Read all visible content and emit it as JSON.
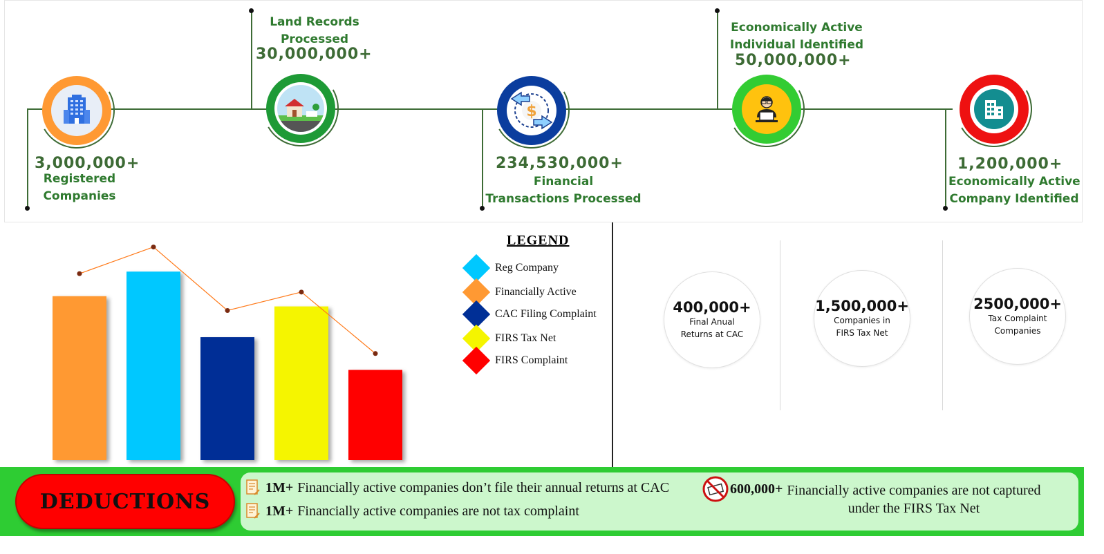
{
  "timeline": {
    "milestones": [
      {
        "value": "3,000,000+",
        "label_line1": "Registered",
        "label_line2": "Companies",
        "icon": "office-building-icon",
        "ring_color": "#ff9933",
        "inner_color": "#e8eef7"
      },
      {
        "value": "30,000,000+",
        "label_line1": "Land Records",
        "label_line2": "Processed",
        "icon": "house-icon",
        "ring_color": "#1e9a36",
        "inner_color": "#bfe3f5"
      },
      {
        "value": "234,530,000+",
        "label_line1": "Financial",
        "label_line2": "Transactions Processed",
        "icon": "dollar-exchange-icon",
        "ring_color": "#0b3d9e",
        "inner_color": "#ffffff"
      },
      {
        "value": "50,000,000+",
        "label_line1": "Economically Active",
        "label_line2": "Individual Identified",
        "icon": "person-laptop-icon",
        "ring_color": "#33cc33",
        "inner_color": "#ffc20e"
      },
      {
        "value": "1,200,000+",
        "label_line1": "Economically Active",
        "label_line2": "Company Identified",
        "icon": "company-building-icon",
        "ring_color": "#ee1111",
        "inner_color": "#138d90"
      }
    ]
  },
  "chart_data": {
    "type": "bar",
    "categories": [
      "Financially Active",
      "Reg Company",
      "CAC Filing Complaint",
      "FIRS Tax Net",
      "FIRS Complaint"
    ],
    "values": [
      4.0,
      4.6,
      3.0,
      3.75,
      2.2
    ],
    "line_values": [
      4.55,
      5.2,
      3.65,
      4.1,
      2.6
    ],
    "colors": [
      "#ff9933",
      "#00c8ff",
      "#002f96",
      "#f5f500",
      "#ff0000"
    ],
    "line_color": "#ff7a1a",
    "title": "",
    "xlabel": "",
    "ylabel": "",
    "ylim": [
      0,
      5.8
    ],
    "grid": false,
    "legend": {
      "title": "LEGEND",
      "placement": "right",
      "items": [
        {
          "label": "Reg Company",
          "color": "#00c8ff"
        },
        {
          "label": "Financially Active",
          "color": "#ff9933"
        },
        {
          "label": "CAC Filing Complaint",
          "color": "#002f96"
        },
        {
          "label": "FIRS Tax Net",
          "color": "#f5f500"
        },
        {
          "label": "FIRS Complaint",
          "color": "#ff0000"
        }
      ]
    }
  },
  "stats": [
    {
      "value": "400,000+",
      "line1": "Final Anual",
      "line2": "Returns at CAC"
    },
    {
      "value": "1,500,000+",
      "line1": "Companies in",
      "line2": "FIRS Tax Net"
    },
    {
      "value": "2500,000+",
      "line1": "Tax Complaint",
      "line2": "Companies"
    }
  ],
  "deductions": {
    "title": "DEDUCTIONS",
    "items": [
      {
        "bold": "1M+",
        "text": "Financially active companies don’t file their annual returns at CAC",
        "icon": "document-pen-icon"
      },
      {
        "bold": "1M+",
        "text": "Financially active companies are not tax complaint",
        "icon": "document-pen-icon"
      },
      {
        "bold": "600,000+",
        "text_line1": "Financially active companies are not captured",
        "text_line2": "under the FIRS Tax Net",
        "icon": "prohibited-cash-icon"
      }
    ]
  }
}
